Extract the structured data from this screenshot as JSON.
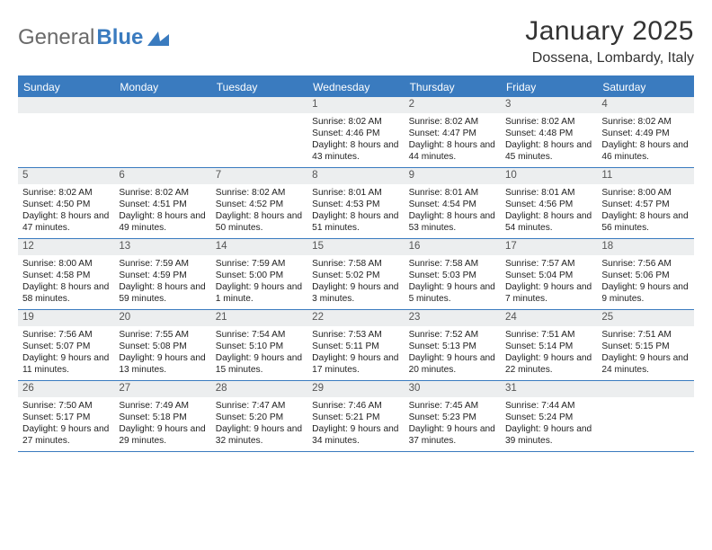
{
  "logo": {
    "text1": "General",
    "text2": "Blue"
  },
  "title": "January 2025",
  "location": "Dossena, Lombardy, Italy",
  "colors": {
    "accent": "#3A7BBF",
    "band": "#eceeef",
    "text": "#222222",
    "bg": "#ffffff"
  },
  "weekdays": [
    "Sunday",
    "Monday",
    "Tuesday",
    "Wednesday",
    "Thursday",
    "Friday",
    "Saturday"
  ],
  "weeks": [
    [
      null,
      null,
      null,
      {
        "n": "1",
        "sr": "8:02 AM",
        "ss": "4:46 PM",
        "dl": "8 hours and 43 minutes."
      },
      {
        "n": "2",
        "sr": "8:02 AM",
        "ss": "4:47 PM",
        "dl": "8 hours and 44 minutes."
      },
      {
        "n": "3",
        "sr": "8:02 AM",
        "ss": "4:48 PM",
        "dl": "8 hours and 45 minutes."
      },
      {
        "n": "4",
        "sr": "8:02 AM",
        "ss": "4:49 PM",
        "dl": "8 hours and 46 minutes."
      }
    ],
    [
      {
        "n": "5",
        "sr": "8:02 AM",
        "ss": "4:50 PM",
        "dl": "8 hours and 47 minutes."
      },
      {
        "n": "6",
        "sr": "8:02 AM",
        "ss": "4:51 PM",
        "dl": "8 hours and 49 minutes."
      },
      {
        "n": "7",
        "sr": "8:02 AM",
        "ss": "4:52 PM",
        "dl": "8 hours and 50 minutes."
      },
      {
        "n": "8",
        "sr": "8:01 AM",
        "ss": "4:53 PM",
        "dl": "8 hours and 51 minutes."
      },
      {
        "n": "9",
        "sr": "8:01 AM",
        "ss": "4:54 PM",
        "dl": "8 hours and 53 minutes."
      },
      {
        "n": "10",
        "sr": "8:01 AM",
        "ss": "4:56 PM",
        "dl": "8 hours and 54 minutes."
      },
      {
        "n": "11",
        "sr": "8:00 AM",
        "ss": "4:57 PM",
        "dl": "8 hours and 56 minutes."
      }
    ],
    [
      {
        "n": "12",
        "sr": "8:00 AM",
        "ss": "4:58 PM",
        "dl": "8 hours and 58 minutes."
      },
      {
        "n": "13",
        "sr": "7:59 AM",
        "ss": "4:59 PM",
        "dl": "8 hours and 59 minutes."
      },
      {
        "n": "14",
        "sr": "7:59 AM",
        "ss": "5:00 PM",
        "dl": "9 hours and 1 minute."
      },
      {
        "n": "15",
        "sr": "7:58 AM",
        "ss": "5:02 PM",
        "dl": "9 hours and 3 minutes."
      },
      {
        "n": "16",
        "sr": "7:58 AM",
        "ss": "5:03 PM",
        "dl": "9 hours and 5 minutes."
      },
      {
        "n": "17",
        "sr": "7:57 AM",
        "ss": "5:04 PM",
        "dl": "9 hours and 7 minutes."
      },
      {
        "n": "18",
        "sr": "7:56 AM",
        "ss": "5:06 PM",
        "dl": "9 hours and 9 minutes."
      }
    ],
    [
      {
        "n": "19",
        "sr": "7:56 AM",
        "ss": "5:07 PM",
        "dl": "9 hours and 11 minutes."
      },
      {
        "n": "20",
        "sr": "7:55 AM",
        "ss": "5:08 PM",
        "dl": "9 hours and 13 minutes."
      },
      {
        "n": "21",
        "sr": "7:54 AM",
        "ss": "5:10 PM",
        "dl": "9 hours and 15 minutes."
      },
      {
        "n": "22",
        "sr": "7:53 AM",
        "ss": "5:11 PM",
        "dl": "9 hours and 17 minutes."
      },
      {
        "n": "23",
        "sr": "7:52 AM",
        "ss": "5:13 PM",
        "dl": "9 hours and 20 minutes."
      },
      {
        "n": "24",
        "sr": "7:51 AM",
        "ss": "5:14 PM",
        "dl": "9 hours and 22 minutes."
      },
      {
        "n": "25",
        "sr": "7:51 AM",
        "ss": "5:15 PM",
        "dl": "9 hours and 24 minutes."
      }
    ],
    [
      {
        "n": "26",
        "sr": "7:50 AM",
        "ss": "5:17 PM",
        "dl": "9 hours and 27 minutes."
      },
      {
        "n": "27",
        "sr": "7:49 AM",
        "ss": "5:18 PM",
        "dl": "9 hours and 29 minutes."
      },
      {
        "n": "28",
        "sr": "7:47 AM",
        "ss": "5:20 PM",
        "dl": "9 hours and 32 minutes."
      },
      {
        "n": "29",
        "sr": "7:46 AM",
        "ss": "5:21 PM",
        "dl": "9 hours and 34 minutes."
      },
      {
        "n": "30",
        "sr": "7:45 AM",
        "ss": "5:23 PM",
        "dl": "9 hours and 37 minutes."
      },
      {
        "n": "31",
        "sr": "7:44 AM",
        "ss": "5:24 PM",
        "dl": "9 hours and 39 minutes."
      },
      null
    ]
  ],
  "labels": {
    "sunrise": "Sunrise:",
    "sunset": "Sunset:",
    "daylight": "Daylight:"
  }
}
